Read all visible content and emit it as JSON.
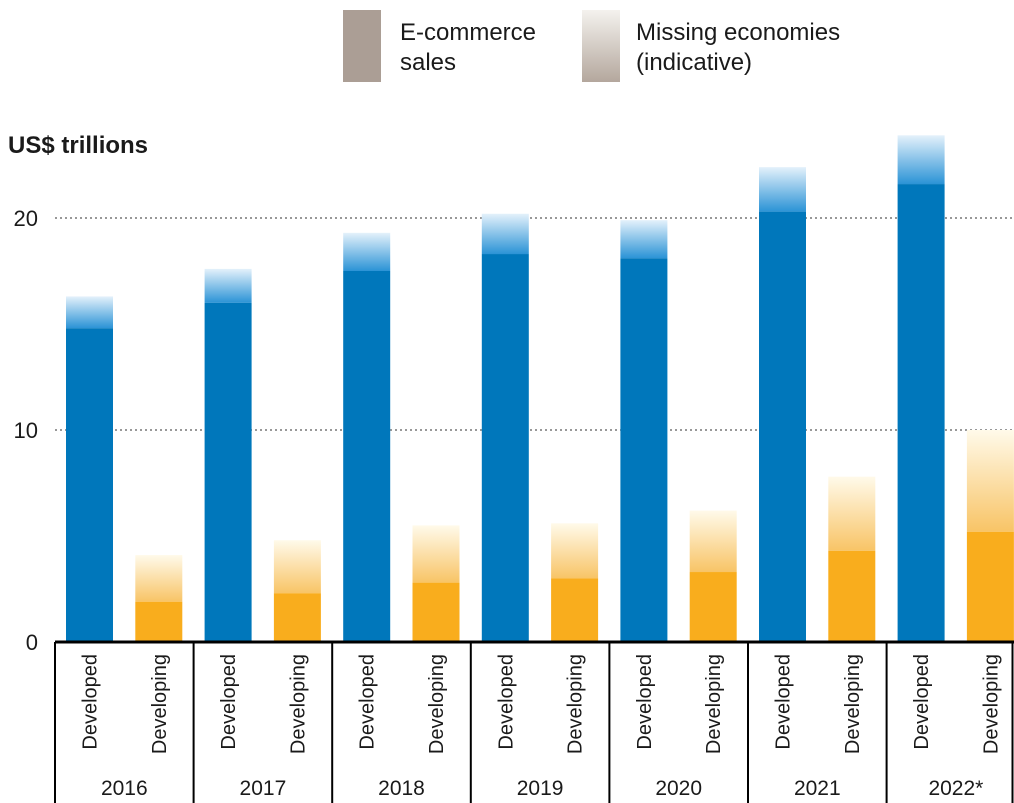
{
  "chart_data": {
    "type": "bar",
    "title": "",
    "ylabel": "US$ trillions",
    "xlabel": "",
    "ylim": [
      0,
      22
    ],
    "yticks": [
      0,
      10,
      20
    ],
    "grid": "dotted horizontal at 10 and 20",
    "legend": {
      "placement": "top-center",
      "items": [
        {
          "lines": [
            "E-commerce",
            "sales"
          ],
          "swatch": "solid"
        },
        {
          "lines": [
            "Missing economies",
            "(indicative)"
          ],
          "swatch": "gradient"
        }
      ]
    },
    "years": [
      "2016",
      "2017",
      "2018",
      "2019",
      "2020",
      "2021",
      "2022*"
    ],
    "groups": [
      "Developed",
      "Developing"
    ],
    "series": [
      {
        "group": "Developed",
        "color": "#0077bb",
        "light_color": "#cfe6f7",
        "sales": [
          14.8,
          16.0,
          17.5,
          18.3,
          18.1,
          20.3,
          21.6
        ],
        "total_with_missing": [
          16.3,
          17.6,
          19.3,
          20.2,
          19.9,
          22.4,
          23.9
        ]
      },
      {
        "group": "Developing",
        "color": "#f9ad1d",
        "light_color": "#fdf3d7",
        "sales": [
          1.9,
          2.3,
          2.8,
          3.0,
          3.3,
          4.3,
          5.2
        ],
        "total_with_missing": [
          4.1,
          4.8,
          5.5,
          5.6,
          6.2,
          7.8,
          10.0
        ]
      }
    ]
  }
}
